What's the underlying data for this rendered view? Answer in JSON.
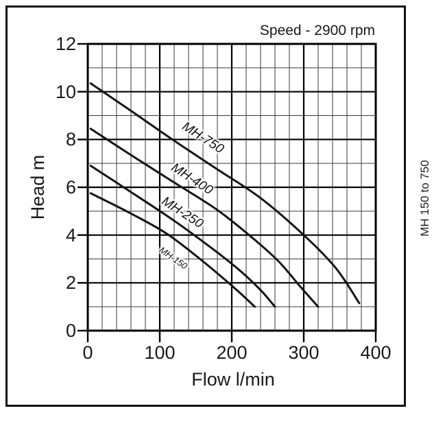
{
  "annotations": {
    "speed": "Speed - 2900 rpm",
    "side": "MH 150 to 750"
  },
  "chart_data": {
    "type": "line",
    "title": "",
    "xlabel": "Flow l/min",
    "ylabel": "Head m",
    "xlim": [
      0,
      400
    ],
    "ylim": [
      0,
      12
    ],
    "x_ticks": [
      0,
      100,
      200,
      300,
      400
    ],
    "y_ticks": [
      0,
      2,
      4,
      6,
      8,
      10,
      12
    ],
    "x_minor_step": 20,
    "y_minor_step": 1,
    "grid": "on",
    "legend": "labels-on-curves",
    "speed_rpm": 2900,
    "series": [
      {
        "name": "MH-750",
        "points": [
          [
            4,
            10.35
          ],
          [
            60,
            9.2
          ],
          [
            120,
            7.95
          ],
          [
            180,
            6.75
          ],
          [
            240,
            5.55
          ],
          [
            300,
            4.0
          ],
          [
            345,
            2.6
          ],
          [
            377,
            1.15
          ]
        ]
      },
      {
        "name": "MH-400",
        "points": [
          [
            4,
            8.45
          ],
          [
            60,
            7.35
          ],
          [
            120,
            6.2
          ],
          [
            180,
            5.05
          ],
          [
            230,
            3.85
          ],
          [
            265,
            2.9
          ],
          [
            295,
            1.85
          ],
          [
            320,
            1.0
          ]
        ]
      },
      {
        "name": "MH-250",
        "points": [
          [
            4,
            6.9
          ],
          [
            60,
            5.8
          ],
          [
            120,
            4.6
          ],
          [
            170,
            3.5
          ],
          [
            210,
            2.55
          ],
          [
            240,
            1.7
          ],
          [
            260,
            1.0
          ]
        ]
      },
      {
        "name": "MH-150",
        "points": [
          [
            4,
            5.75
          ],
          [
            60,
            4.9
          ],
          [
            110,
            4.05
          ],
          [
            160,
            2.9
          ],
          [
            205,
            1.75
          ],
          [
            232,
            1.0
          ]
        ]
      }
    ],
    "colors": {
      "curve": "#151515",
      "grid_major": "#000000",
      "grid_minor": "#3a3a3a",
      "background": "#ffffff"
    }
  }
}
